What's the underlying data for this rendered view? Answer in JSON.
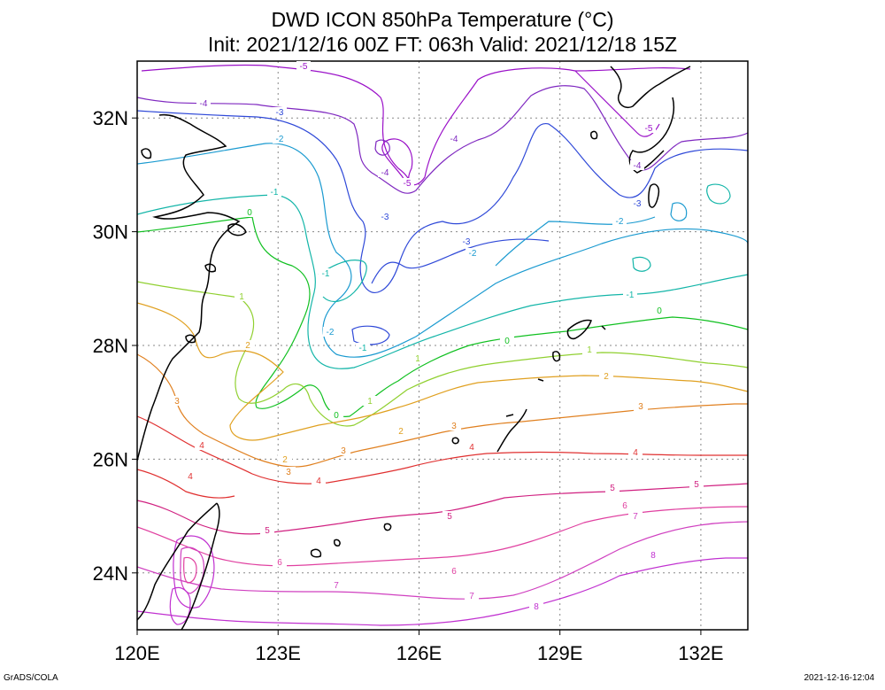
{
  "title": {
    "line1": "DWD ICON 850hPa Temperature (°C)",
    "line2": "Init: 2021/12/16 00Z  FT: 063h  Valid: 2021/12/18 15Z"
  },
  "map": {
    "projection": "lat-lon",
    "lon_range": [
      120,
      133
    ],
    "lat_range": [
      23,
      33
    ],
    "grid": "dotted",
    "x_ticks": [
      {
        "value": 120,
        "label": "120E"
      },
      {
        "value": 123,
        "label": "123E"
      },
      {
        "value": 126,
        "label": "126E"
      },
      {
        "value": 129,
        "label": "129E"
      },
      {
        "value": 132,
        "label": "132E"
      }
    ],
    "y_ticks": [
      {
        "value": 24,
        "label": "24N"
      },
      {
        "value": 26,
        "label": "26N"
      },
      {
        "value": 28,
        "label": "28N"
      },
      {
        "value": 30,
        "label": "30N"
      },
      {
        "value": 32,
        "label": "32N"
      }
    ]
  },
  "contour_colors": {
    "-5": "#9a10c8",
    "-4": "#7f28c0",
    "-3": "#2f49d8",
    "-2": "#1a9ad0",
    "-1": "#13b5a8",
    "0": "#10c020",
    "1": "#90d030",
    "2": "#e0a020",
    "3": "#e08020",
    "4": "#e03030",
    "5": "#d02080",
    "6": "#e040a0",
    "7": "#d040c0",
    "8": "#c030d0"
  },
  "contour_labels": [
    {
      "text": "-5",
      "color": "-5"
    },
    {
      "text": "-4",
      "color": "-4"
    },
    {
      "text": "-3",
      "color": "-3"
    },
    {
      "text": "-2",
      "color": "-2"
    },
    {
      "text": "-1",
      "color": "-1"
    },
    {
      "text": "0",
      "color": "0"
    },
    {
      "text": "1",
      "color": "1"
    },
    {
      "text": "2",
      "color": "2"
    },
    {
      "text": "3",
      "color": "3"
    },
    {
      "text": "4",
      "color": "4"
    },
    {
      "text": "5",
      "color": "5"
    },
    {
      "text": "6",
      "color": "6"
    },
    {
      "text": "7",
      "color": "7"
    },
    {
      "text": "8",
      "color": "8"
    }
  ],
  "footer": {
    "left": "GrADS/COLA",
    "right": "2021-12-16-12:04"
  }
}
